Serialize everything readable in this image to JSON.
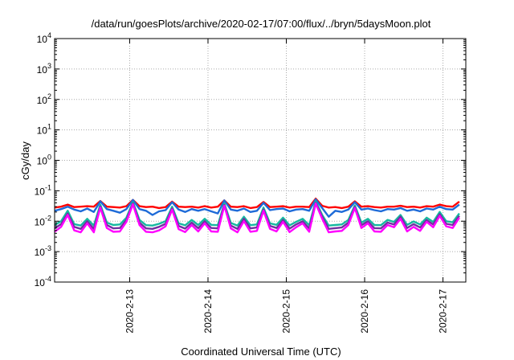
{
  "chart_data": {
    "type": "line",
    "title": "/data/run/goesPlots/archive/2020-02-17/07:00/flux/../bryn/5daysMoon.plot",
    "xlabel": "Coordinated Universal Time (UTC)",
    "ylabel": "cGy/day",
    "y_scale": "log",
    "ylim": [
      0.0001,
      10000
    ],
    "y_ticks": [
      {
        "base": "10",
        "exp": "-4",
        "value": 0.0001
      },
      {
        "base": "10",
        "exp": "-3",
        "value": 0.001
      },
      {
        "base": "10",
        "exp": "-2",
        "value": 0.01
      },
      {
        "base": "10",
        "exp": "-1",
        "value": 0.1
      },
      {
        "base": "10",
        "exp": "0",
        "value": 1
      },
      {
        "base": "10",
        "exp": "1",
        "value": 10
      },
      {
        "base": "10",
        "exp": "2",
        "value": 100
      },
      {
        "base": "10",
        "exp": "3",
        "value": 1000
      },
      {
        "base": "10",
        "exp": "4",
        "value": 10000
      }
    ],
    "xlim": [
      "2020-02-12T01:00",
      "2020-02-17T07:00"
    ],
    "x_ticks": [
      "2020-2-13",
      "2020-2-14",
      "2020-2-15",
      "2020-2-16",
      "2020-2-17"
    ],
    "grid": true,
    "series": [
      {
        "color": "#ff0000",
        "x_start": "2020-02-12T01:00",
        "x_step_hours": 2,
        "values": [
          0.028,
          0.03,
          0.035,
          0.029,
          0.03,
          0.031,
          0.03,
          0.046,
          0.03,
          0.029,
          0.028,
          0.031,
          0.05,
          0.031,
          0.029,
          0.03,
          0.027,
          0.029,
          0.044,
          0.03,
          0.029,
          0.03,
          0.028,
          0.031,
          0.028,
          0.03,
          0.048,
          0.03,
          0.029,
          0.031,
          0.027,
          0.029,
          0.043,
          0.029,
          0.03,
          0.031,
          0.028,
          0.03,
          0.03,
          0.029,
          0.055,
          0.032,
          0.028,
          0.029,
          0.027,
          0.03,
          0.045,
          0.03,
          0.031,
          0.029,
          0.028,
          0.03,
          0.03,
          0.032,
          0.029,
          0.03,
          0.028,
          0.031,
          0.03,
          0.035,
          0.031,
          0.03,
          0.044
        ]
      },
      {
        "color": "#1e6bd8",
        "x_start": "2020-02-12T01:00",
        "x_step_hours": 2,
        "values": [
          0.022,
          0.025,
          0.03,
          0.024,
          0.021,
          0.026,
          0.02,
          0.045,
          0.025,
          0.022,
          0.019,
          0.025,
          0.05,
          0.025,
          0.022,
          0.016,
          0.021,
          0.023,
          0.042,
          0.024,
          0.02,
          0.025,
          0.022,
          0.025,
          0.021,
          0.018,
          0.048,
          0.024,
          0.022,
          0.026,
          0.02,
          0.022,
          0.04,
          0.023,
          0.025,
          0.026,
          0.021,
          0.024,
          0.025,
          0.022,
          0.052,
          0.027,
          0.014,
          0.022,
          0.02,
          0.024,
          0.042,
          0.024,
          0.026,
          0.023,
          0.021,
          0.025,
          0.024,
          0.027,
          0.022,
          0.024,
          0.021,
          0.026,
          0.024,
          0.03,
          0.025,
          0.024,
          0.035
        ]
      },
      {
        "color": "#16b8a0",
        "x_start": "2020-02-12T01:00",
        "x_step_hours": 2,
        "values": [
          0.0075,
          0.01,
          0.022,
          0.008,
          0.0072,
          0.012,
          0.0072,
          0.035,
          0.009,
          0.0075,
          0.0078,
          0.013,
          0.042,
          0.011,
          0.0074,
          0.0072,
          0.0082,
          0.01,
          0.03,
          0.0085,
          0.0073,
          0.011,
          0.0075,
          0.012,
          0.0076,
          0.0074,
          0.038,
          0.0088,
          0.0072,
          0.014,
          0.0074,
          0.0078,
          0.028,
          0.0085,
          0.0076,
          0.013,
          0.0073,
          0.0095,
          0.012,
          0.0074,
          0.045,
          0.016,
          0.0072,
          0.0075,
          0.0078,
          0.011,
          0.033,
          0.009,
          0.012,
          0.0075,
          0.0074,
          0.011,
          0.0095,
          0.016,
          0.0076,
          0.0098,
          0.0078,
          0.013,
          0.0095,
          0.02,
          0.01,
          0.0092,
          0.018
        ]
      },
      {
        "color": "#7030a0",
        "x_start": "2020-02-12T01:00",
        "x_step_hours": 2,
        "values": [
          0.0058,
          0.008,
          0.018,
          0.0065,
          0.0056,
          0.01,
          0.0056,
          0.03,
          0.0075,
          0.0058,
          0.006,
          0.011,
          0.038,
          0.009,
          0.0058,
          0.0056,
          0.0065,
          0.0082,
          0.026,
          0.007,
          0.0057,
          0.009,
          0.0059,
          0.01,
          0.006,
          0.0058,
          0.034,
          0.0072,
          0.0056,
          0.012,
          0.0058,
          0.0062,
          0.024,
          0.007,
          0.006,
          0.011,
          0.0057,
          0.0078,
          0.01,
          0.0058,
          0.04,
          0.014,
          0.0056,
          0.0059,
          0.0062,
          0.009,
          0.029,
          0.0074,
          0.01,
          0.0059,
          0.0058,
          0.009,
          0.0078,
          0.014,
          0.006,
          0.008,
          0.0062,
          0.011,
          0.0078,
          0.017,
          0.0082,
          0.0075,
          0.015
        ]
      },
      {
        "color": "#ff00ff",
        "x_start": "2020-02-12T01:00",
        "x_step_hours": 2,
        "values": [
          0.0045,
          0.0065,
          0.016,
          0.005,
          0.0043,
          0.0085,
          0.0043,
          0.028,
          0.006,
          0.0045,
          0.0046,
          0.0095,
          0.036,
          0.0075,
          0.0045,
          0.0043,
          0.005,
          0.0068,
          0.024,
          0.0055,
          0.0044,
          0.0075,
          0.0046,
          0.0085,
          0.0046,
          0.0045,
          0.032,
          0.0058,
          0.0043,
          0.01,
          0.0045,
          0.0048,
          0.022,
          0.0056,
          0.0046,
          0.0095,
          0.0044,
          0.0063,
          0.0085,
          0.0045,
          0.038,
          0.012,
          0.0043,
          0.0046,
          0.0048,
          0.0075,
          0.027,
          0.006,
          0.0085,
          0.0046,
          0.0045,
          0.0075,
          0.0063,
          0.012,
          0.0046,
          0.0065,
          0.0048,
          0.0095,
          0.0063,
          0.015,
          0.0068,
          0.006,
          0.013
        ]
      }
    ]
  }
}
